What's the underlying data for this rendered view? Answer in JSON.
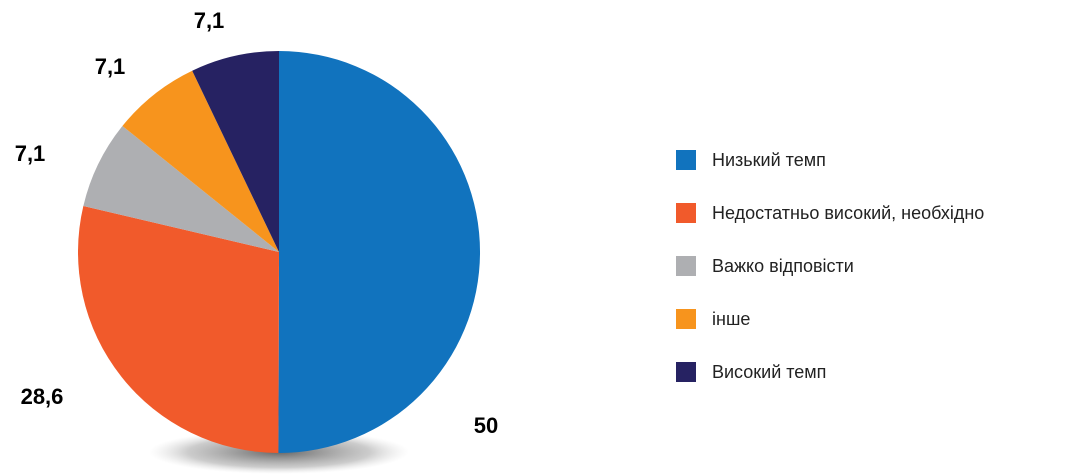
{
  "chart_data": {
    "type": "pie",
    "categories": [
      "Низький темп",
      "Недостатньо високий, необхідно",
      "Важко відповісти",
      "інше",
      "Високий темп"
    ],
    "values": [
      50,
      28.6,
      7.1,
      7.1,
      7.1
    ],
    "value_labels": [
      "50",
      "28,6",
      "7,1",
      "7,1",
      "7,1"
    ],
    "colors": [
      "#1173be",
      "#f15a2b",
      "#aeafb2",
      "#f7941d",
      "#262262"
    ],
    "legend": "right"
  }
}
